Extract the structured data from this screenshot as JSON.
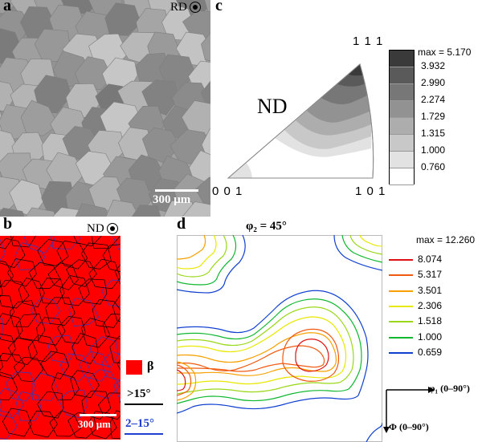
{
  "panel_a": {
    "label": "a",
    "direction": "RD",
    "scale_bar": "300 μm"
  },
  "panel_b": {
    "label": "b",
    "direction": "ND",
    "scale_bar": "300 μm",
    "legend": {
      "phase": "β",
      "phase_color": "#ff0000",
      "high_angle": ">15°",
      "high_angle_color": "#000000",
      "low_angle": "2–15°",
      "low_angle_color": "#1f3fd0"
    }
  },
  "panel_c": {
    "label": "c",
    "corner_111": "1 1 1",
    "corner_001": "0 0 1",
    "corner_101": "1 0 1",
    "direction": "ND",
    "legend_max": "max = 5.170",
    "legend_levels": [
      "3.932",
      "2.990",
      "2.274",
      "1.729",
      "1.315",
      "1.000",
      "0.760"
    ],
    "legend_colors": [
      "#3a3a3a",
      "#5a5a5a",
      "#777777",
      "#929292",
      "#adadad",
      "#c8c8c8",
      "#e2e2e2",
      "#ffffff"
    ]
  },
  "panel_d": {
    "label": "d",
    "title": "φ₂ = 45°",
    "legend_max": "max = 12.260",
    "legend_levels": [
      "8.074",
      "5.317",
      "3.501",
      "2.306",
      "1.518",
      "1.000",
      "0.659"
    ],
    "legend_colors": [
      "#e01010",
      "#f05a10",
      "#f7a000",
      "#e8e800",
      "#9ad81a",
      "#10b830",
      "#1040d0"
    ],
    "axis_x": "φ₁ (0–90°)",
    "axis_y": "Φ (0–90°)"
  }
}
